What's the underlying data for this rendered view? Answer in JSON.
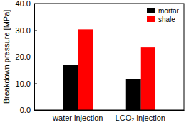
{
  "chart_data": {
    "type": "bar",
    "y_label": "Breakdown pressure [MPa]",
    "categories": [
      "water injection",
      "LCO₂ injection"
    ],
    "series": [
      {
        "name": "mortar",
        "color": "#000000",
        "values": [
          17.0,
          11.6
        ]
      },
      {
        "name": "shale",
        "color": "#ff0000",
        "values": [
          30.3,
          23.7
        ]
      }
    ],
    "ylim": [
      0,
      40
    ],
    "yticks": [
      {
        "value": 0,
        "label": "0.0"
      },
      {
        "value": 10,
        "label": "10.0"
      },
      {
        "value": 20,
        "label": "20.0"
      },
      {
        "value": 30,
        "label": "30.0"
      },
      {
        "value": 40,
        "label": "40.0"
      }
    ],
    "legend": "upper right"
  }
}
